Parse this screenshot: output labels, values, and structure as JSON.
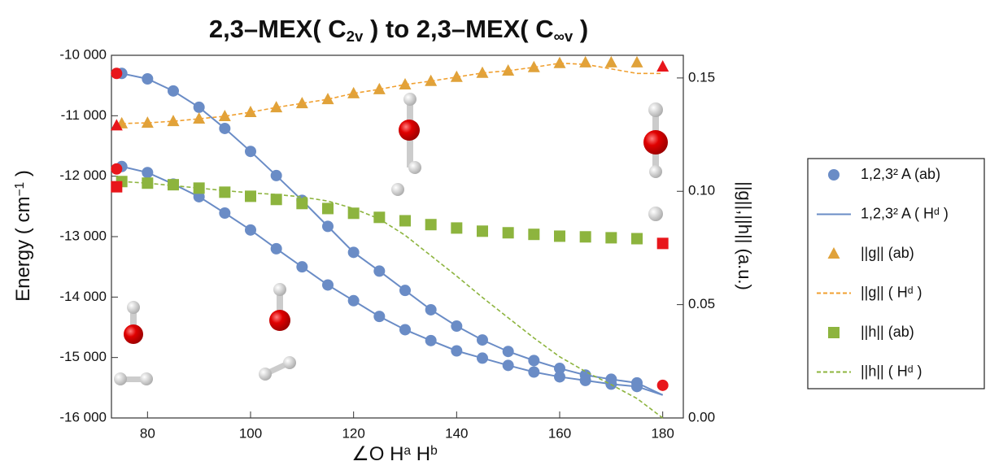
{
  "chart_data": {
    "type": "line",
    "title_parts": [
      "2,3–MEX( C",
      "2v",
      " ) to 2,3–MEX( C",
      "∞v",
      " )"
    ],
    "x_label_parts": [
      "∠O H",
      "a",
      " H",
      "b"
    ],
    "y_label_parts": [
      "Energy ( cm",
      "−1",
      " )"
    ],
    "y2_label": "||g||,||h|| (a.u.)",
    "x": [
      75,
      80,
      85,
      90,
      95,
      100,
      105,
      110,
      115,
      120,
      125,
      130,
      135,
      140,
      145,
      150,
      155,
      160,
      165,
      170,
      175,
      180
    ],
    "xlim": [
      73,
      184
    ],
    "xticks": [
      80,
      100,
      120,
      140,
      160,
      180
    ],
    "ylim": [
      -16000,
      -10000
    ],
    "yticks": [
      {
        "value": -16000,
        "label": "-16 000"
      },
      {
        "value": -15000,
        "label": "-15 000"
      },
      {
        "value": -14000,
        "label": "-14 000"
      },
      {
        "value": -13000,
        "label": "-13 000"
      },
      {
        "value": -12000,
        "label": "-12 000"
      },
      {
        "value": -11000,
        "label": "-11 000"
      },
      {
        "value": -10000,
        "label": "-10 000"
      }
    ],
    "y2lim": [
      0,
      0.16
    ],
    "y2ticks": [
      {
        "value": 0,
        "label": "0.00"
      },
      {
        "value": 0.05,
        "label": "0.05"
      },
      {
        "value": 0.1,
        "label": "0.10"
      },
      {
        "value": 0.15,
        "label": "0.15"
      }
    ],
    "series": [
      {
        "name": "1,2,3² A (ab)",
        "color": "#6a8cc6",
        "marker": "circle",
        "axis": "y",
        "values": [
          -10300,
          -10390,
          -10590,
          -10860,
          -11210,
          -11590,
          -11990,
          -12400,
          -12830,
          -13260,
          -13570,
          -13890,
          -14210,
          -14480,
          -14710,
          -14900,
          -15050,
          -15180,
          -15290,
          -15360,
          -15420,
          null
        ]
      },
      {
        "color": "#6a8cc6",
        "marker": "circle",
        "axis": "y",
        "values": [
          -11840,
          -11940,
          -12130,
          -12340,
          -12610,
          -12890,
          -13200,
          -13500,
          -13800,
          -14060,
          -14320,
          -14540,
          -14720,
          -14890,
          -15010,
          -15130,
          -15240,
          -15320,
          -15380,
          -15440,
          -15480,
          null
        ]
      },
      {
        "name": "1,2,3² A ( Hᵈ )",
        "color": "#6a8cc6",
        "line_style": "solid",
        "axis": "y",
        "values": [
          -10300,
          -10390,
          -10590,
          -10860,
          -11210,
          -11590,
          -11990,
          -12400,
          -12830,
          -13260,
          -13570,
          -13890,
          -14210,
          -14480,
          -14710,
          -14900,
          -15050,
          -15180,
          -15290,
          -15360,
          -15420,
          -15620
        ]
      },
      {
        "color": "#6a8cc6",
        "line_style": "solid",
        "axis": "y",
        "values": [
          -11840,
          -11940,
          -12130,
          -12340,
          -12610,
          -12890,
          -13200,
          -13500,
          -13800,
          -14060,
          -14320,
          -14540,
          -14720,
          -14890,
          -15010,
          -15130,
          -15240,
          -15320,
          -15380,
          -15440,
          -15480,
          -15620
        ]
      },
      {
        "name": "||g|| (ab)",
        "color": "#e0a23a",
        "marker": "triangle",
        "axis": "y2",
        "values": [
          0.1299,
          0.1302,
          0.1309,
          0.132,
          0.1331,
          0.1349,
          0.137,
          0.1388,
          0.1406,
          0.1432,
          0.145,
          0.1471,
          0.1486,
          0.1504,
          0.1522,
          0.1532,
          0.1547,
          0.1565,
          0.1568,
          0.1568,
          0.1568,
          null
        ]
      },
      {
        "name": "||g|| ( Hᵈ )",
        "color": "#f0a030",
        "line_style": "dashed",
        "axis": "y2",
        "values": [
          0.1299,
          0.1302,
          0.1309,
          0.132,
          0.1331,
          0.1349,
          0.137,
          0.1388,
          0.1406,
          0.1432,
          0.145,
          0.1471,
          0.1486,
          0.1504,
          0.1522,
          0.1532,
          0.1547,
          0.1565,
          0.156,
          0.154,
          0.152,
          0.152
        ]
      },
      {
        "name": "||h|| (ab)",
        "color": "#8db43e",
        "marker": "square",
        "axis": "y2",
        "values": [
          0.1043,
          0.1036,
          0.1029,
          0.1014,
          0.0996,
          0.0978,
          0.0964,
          0.0946,
          0.0924,
          0.0903,
          0.0885,
          0.087,
          0.0853,
          0.0838,
          0.0824,
          0.0817,
          0.081,
          0.0802,
          0.0799,
          0.0795,
          0.0791,
          null
        ]
      },
      {
        "name": "||h|| ( Hᵈ )",
        "color": "#8db43e",
        "line_style": "dashed",
        "axis": "y2",
        "values": [
          0.1043,
          0.1036,
          0.1025,
          0.1014,
          0.1003,
          0.0993,
          0.0986,
          0.0975,
          0.0957,
          0.0924,
          0.0878,
          0.0806,
          0.0716,
          0.0626,
          0.0532,
          0.0442,
          0.0353,
          0.027,
          0.0205,
          0.0147,
          0.0086,
          0
        ]
      },
      {
        "color": "#e8161b",
        "marker": "circle",
        "axis": "y",
        "x": [
          74,
          74,
          180
        ],
        "values": [
          -10300,
          -11880,
          -15460
        ]
      },
      {
        "color": "#e8161b",
        "marker": "triangle",
        "axis": "y2",
        "x": [
          74,
          180
        ],
        "values": [
          0.129,
          0.155
        ]
      },
      {
        "color": "#e8161b",
        "marker": "square",
        "axis": "y2",
        "x": [
          74,
          180
        ],
        "values": [
          0.102,
          0.077
        ]
      }
    ]
  }
}
